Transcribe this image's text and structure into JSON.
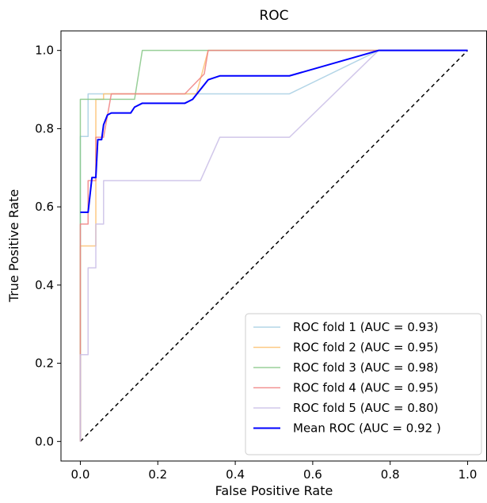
{
  "chart_data": {
    "type": "line",
    "title": "ROC",
    "xlabel": "False Positive Rate",
    "ylabel": "True Positive Rate",
    "xlim": [
      -0.05,
      1.05
    ],
    "ylim": [
      -0.05,
      1.05
    ],
    "xticks": [
      0.0,
      0.2,
      0.4,
      0.6,
      0.8,
      1.0
    ],
    "xtick_labels": [
      "0.0",
      "0.2",
      "0.4",
      "0.6",
      "0.8",
      "1.0"
    ],
    "yticks": [
      0.0,
      0.2,
      0.4,
      0.6,
      0.8,
      1.0
    ],
    "ytick_labels": [
      "0.0",
      "0.2",
      "0.4",
      "0.6",
      "0.8",
      "1.0"
    ],
    "grid": false,
    "legend_position": "lower-right",
    "series": [
      {
        "name": "ROC fold 1 (AUC = 0.93)",
        "color": "#a6cee3",
        "x": [
          0.0,
          0.0,
          0.02,
          0.02,
          0.54,
          0.77,
          1.0
        ],
        "y": [
          0.0,
          0.78,
          0.78,
          0.889,
          0.889,
          1.0,
          1.0
        ]
      },
      {
        "name": "ROC fold 2 (AUC = 0.95)",
        "color": "#fdbf6f",
        "x": [
          0.0,
          0.0,
          0.04,
          0.04,
          0.06,
          0.06,
          0.3,
          0.33,
          0.33,
          1.0
        ],
        "y": [
          0.0,
          0.5,
          0.5,
          0.875,
          0.875,
          0.889,
          0.889,
          1.0,
          1.0,
          1.0
        ]
      },
      {
        "name": "ROC fold 3 (AUC = 0.98)",
        "color": "#86c786",
        "x": [
          0.0,
          0.0,
          0.14,
          0.16,
          0.16,
          1.0
        ],
        "y": [
          0.0,
          0.875,
          0.875,
          1.0,
          1.0,
          1.0
        ]
      },
      {
        "name": "ROC fold 4 (AUC = 0.95)",
        "color": "#f08080",
        "x": [
          0.0,
          0.0,
          0.02,
          0.02,
          0.04,
          0.04,
          0.06,
          0.08,
          0.27,
          0.32,
          0.33,
          1.0
        ],
        "y": [
          0.0,
          0.556,
          0.556,
          0.667,
          0.667,
          0.778,
          0.778,
          0.889,
          0.889,
          0.94,
          1.0,
          1.0
        ]
      },
      {
        "name": "ROC fold 5 (AUC = 0.80)",
        "color": "#c9bde6",
        "x": [
          0.0,
          0.0,
          0.02,
          0.02,
          0.04,
          0.04,
          0.06,
          0.06,
          0.31,
          0.36,
          0.54,
          0.77,
          1.0
        ],
        "y": [
          0.0,
          0.222,
          0.222,
          0.444,
          0.444,
          0.556,
          0.556,
          0.667,
          0.667,
          0.778,
          0.778,
          1.0,
          1.0
        ]
      },
      {
        "name": "Mean ROC (AUC = 0.92 )",
        "color": "#0000ff",
        "x": [
          0.0,
          0.02,
          0.03,
          0.04,
          0.045,
          0.055,
          0.06,
          0.07,
          0.08,
          0.09,
          0.13,
          0.14,
          0.16,
          0.2,
          0.27,
          0.29,
          0.31,
          0.33,
          0.36,
          0.54,
          0.77,
          1.0
        ],
        "y": [
          0.586,
          0.586,
          0.675,
          0.675,
          0.772,
          0.772,
          0.81,
          0.835,
          0.84,
          0.84,
          0.84,
          0.855,
          0.865,
          0.865,
          0.865,
          0.875,
          0.9,
          0.925,
          0.935,
          0.935,
          1.0,
          1.0
        ]
      }
    ],
    "chance_line": {
      "style": "dashed",
      "color": "#000000",
      "x": [
        0.0,
        1.0
      ],
      "y": [
        0.0,
        1.0
      ]
    }
  }
}
